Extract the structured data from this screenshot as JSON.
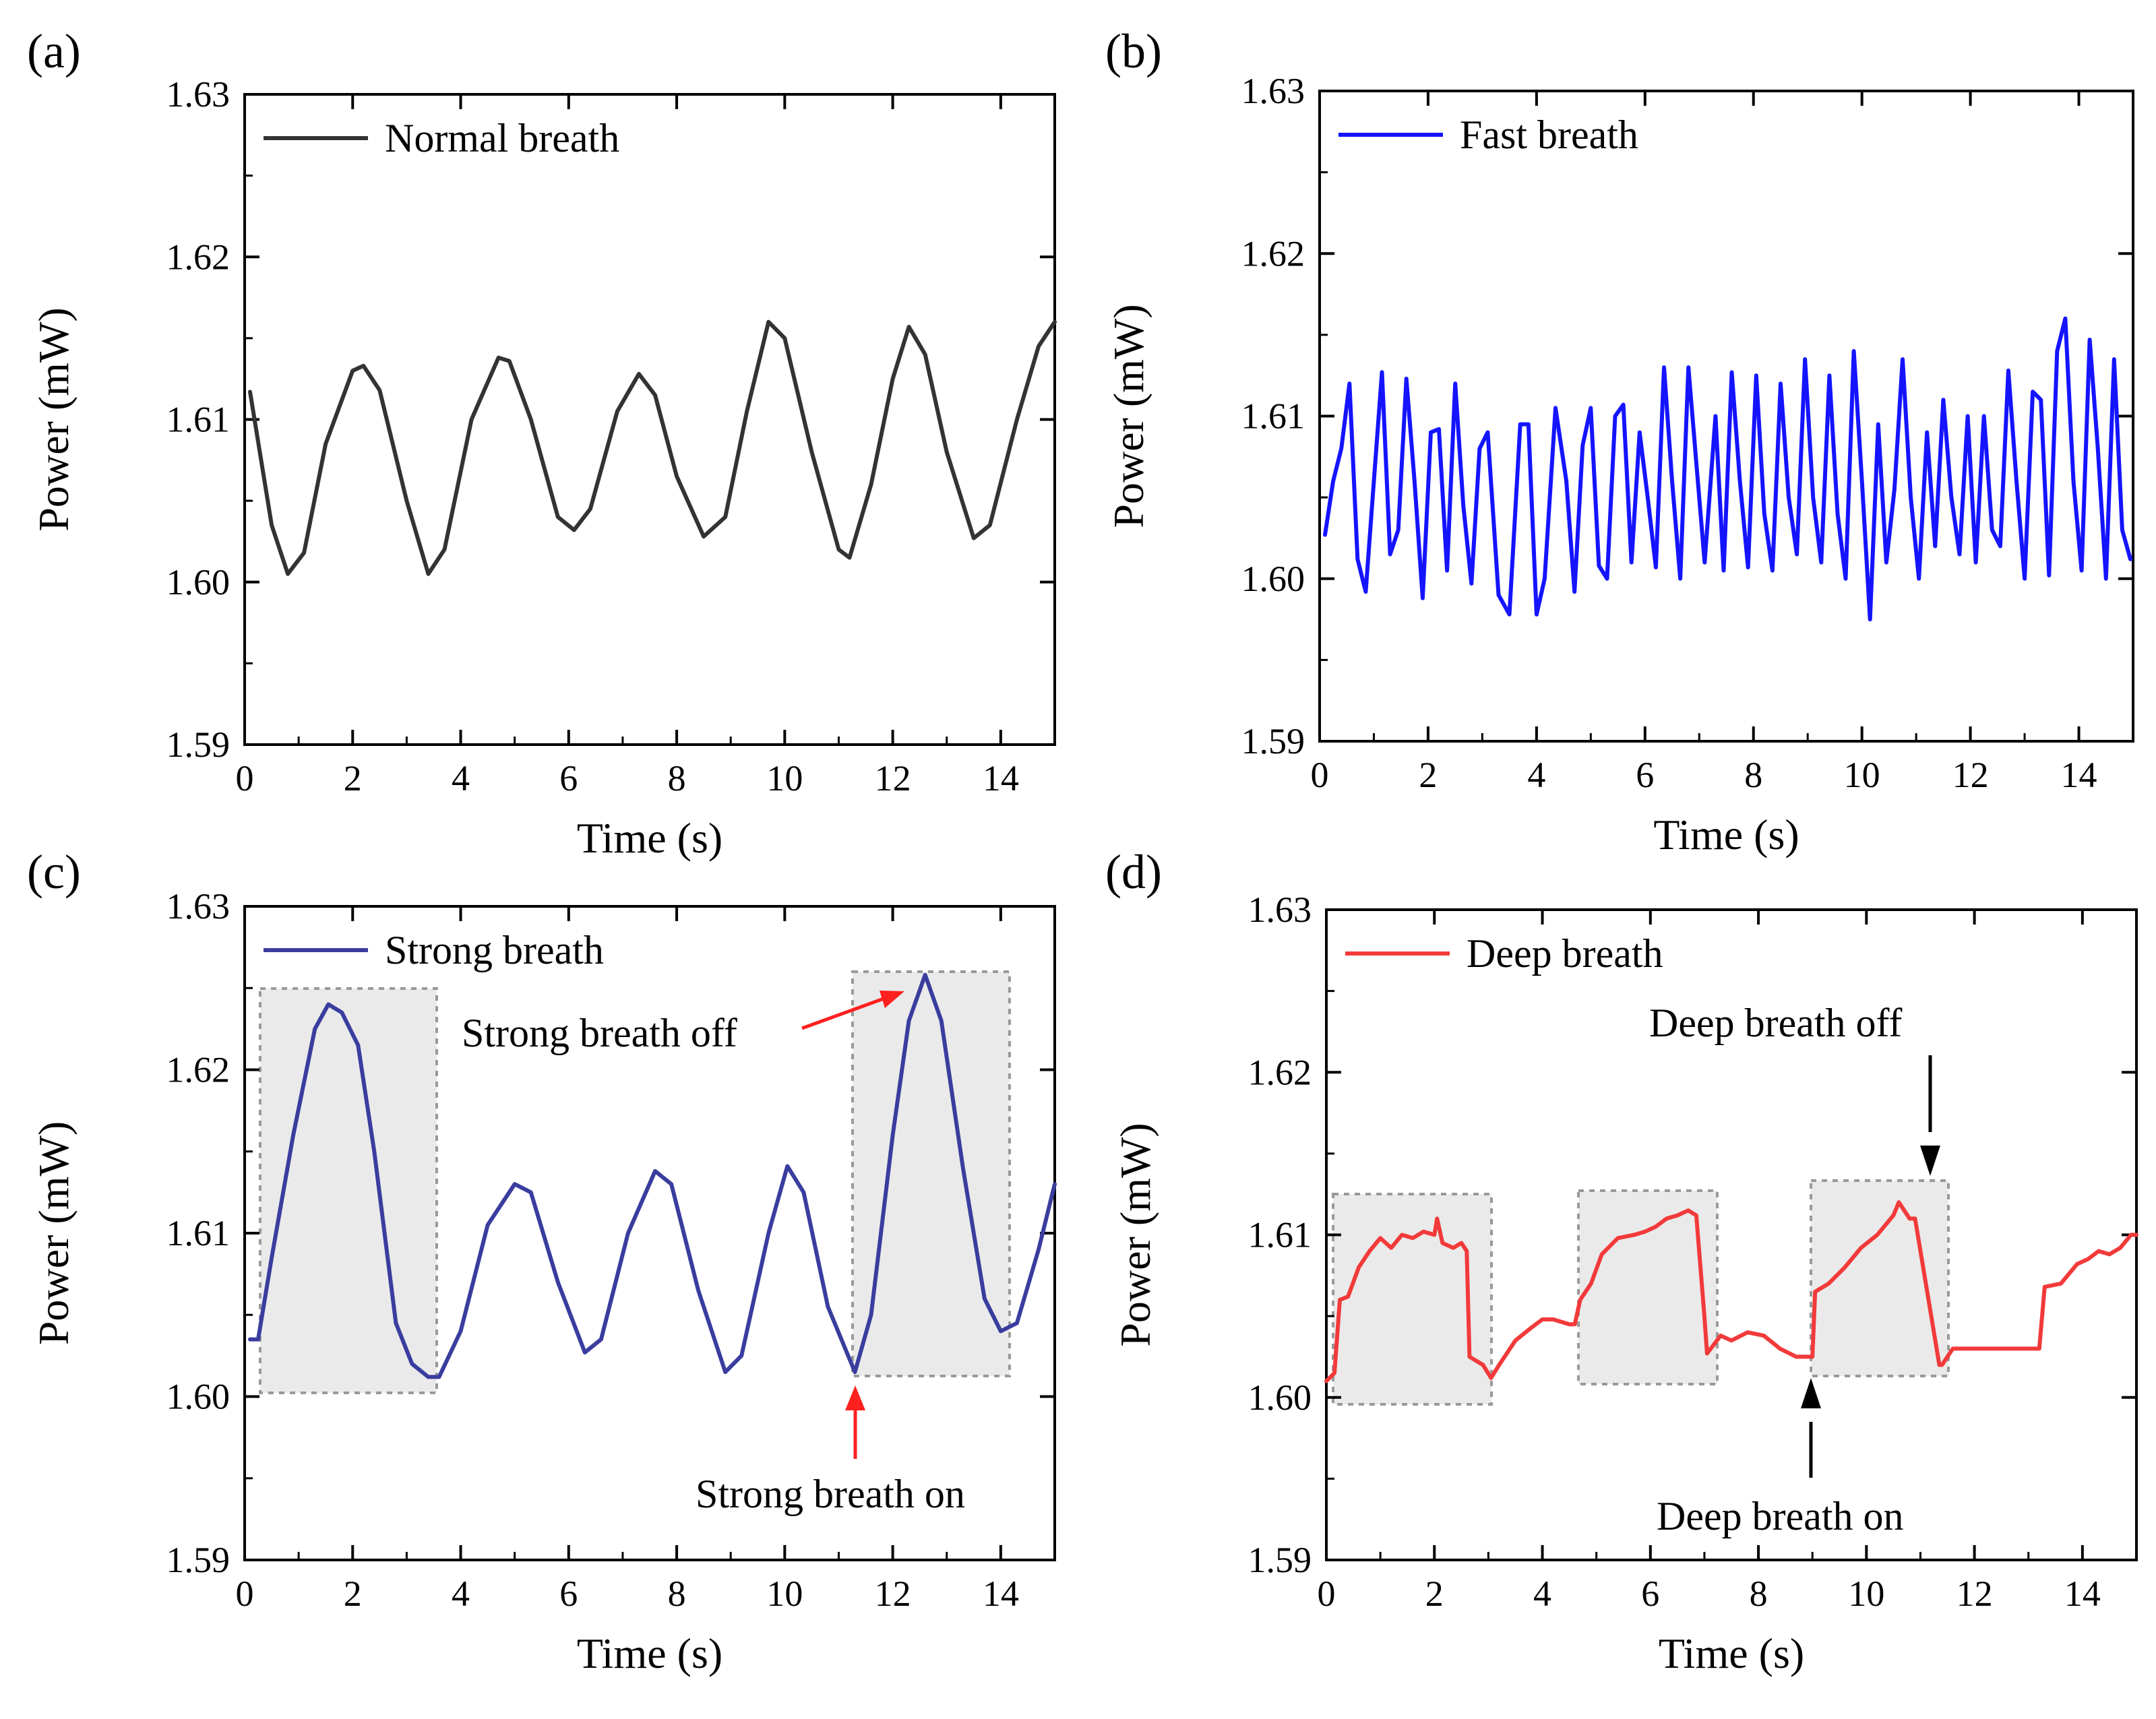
{
  "chart_data": [
    {
      "type": "line",
      "panel": "(a)",
      "xlabel": "Time (s)",
      "ylabel": "Power (mW)",
      "xlim": [
        0,
        15
      ],
      "ylim": [
        1.59,
        1.63
      ],
      "xticks": [
        "0",
        "2",
        "4",
        "6",
        "8",
        "10",
        "12",
        "14"
      ],
      "yticks": [
        "1.59",
        "1.60",
        "1.61",
        "1.62",
        "1.63"
      ],
      "series": [
        {
          "name": "Normal breath",
          "color": "#333333",
          "x": [
            0.1,
            0.5,
            0.8,
            1.1,
            1.5,
            2.0,
            2.2,
            2.5,
            3.0,
            3.4,
            3.7,
            4.2,
            4.7,
            4.9,
            5.3,
            5.8,
            6.1,
            6.4,
            6.9,
            7.3,
            7.6,
            8.0,
            8.5,
            8.9,
            9.3,
            9.7,
            10.0,
            10.5,
            11.0,
            11.2,
            11.6,
            12.0,
            12.3,
            12.6,
            13.0,
            13.5,
            13.8,
            14.3,
            14.7,
            15.0
          ],
          "y": [
            1.6117,
            1.6035,
            1.6005,
            1.6018,
            1.6085,
            1.613,
            1.6133,
            1.6118,
            1.605,
            1.6005,
            1.602,
            1.61,
            1.6138,
            1.6136,
            1.61,
            1.604,
            1.6032,
            1.6045,
            1.6105,
            1.6128,
            1.6115,
            1.6065,
            1.6028,
            1.604,
            1.6105,
            1.616,
            1.615,
            1.608,
            1.602,
            1.6015,
            1.606,
            1.6125,
            1.6157,
            1.614,
            1.608,
            1.6027,
            1.6035,
            1.61,
            1.6145,
            1.616
          ]
        }
      ]
    },
    {
      "type": "line",
      "panel": "(b)",
      "xlabel": "Time (s)",
      "ylabel": "Power (mW)",
      "xlim": [
        0,
        15
      ],
      "ylim": [
        1.59,
        1.63
      ],
      "xticks": [
        "0",
        "2",
        "4",
        "6",
        "8",
        "10",
        "12",
        "14"
      ],
      "yticks": [
        "1.59",
        "1.60",
        "1.61",
        "1.62",
        "1.63"
      ],
      "series": [
        {
          "name": "Fast breath",
          "color": "#1414ff",
          "x": [
            0.1,
            0.25,
            0.4,
            0.55,
            0.7,
            0.85,
            1.0,
            1.15,
            1.3,
            1.45,
            1.6,
            1.75,
            1.9,
            2.05,
            2.2,
            2.35,
            2.5,
            2.65,
            2.8,
            2.95,
            3.1,
            3.3,
            3.5,
            3.7,
            3.85,
            4.0,
            4.15,
            4.35,
            4.55,
            4.7,
            4.85,
            5.0,
            5.15,
            5.3,
            5.45,
            5.6,
            5.75,
            5.9,
            6.05,
            6.2,
            6.35,
            6.5,
            6.65,
            6.8,
            6.95,
            7.1,
            7.3,
            7.45,
            7.6,
            7.75,
            7.9,
            8.05,
            8.2,
            8.35,
            8.5,
            8.65,
            8.8,
            8.95,
            9.1,
            9.25,
            9.4,
            9.55,
            9.7,
            9.85,
            10.0,
            10.15,
            10.3,
            10.45,
            10.6,
            10.75,
            10.9,
            11.05,
            11.2,
            11.35,
            11.5,
            11.65,
            11.8,
            11.95,
            12.1,
            12.25,
            12.4,
            12.55,
            12.7,
            12.85,
            13.0,
            13.15,
            13.3,
            13.45,
            13.6,
            13.75,
            13.9,
            14.05,
            14.2,
            14.35,
            14.5,
            14.65,
            14.8,
            14.95
          ],
          "y": [
            1.6027,
            1.606,
            1.608,
            1.612,
            1.6012,
            1.5992,
            1.606,
            1.6127,
            1.6015,
            1.603,
            1.6123,
            1.606,
            1.5988,
            1.609,
            1.6092,
            1.6005,
            1.612,
            1.6045,
            1.5997,
            1.608,
            1.609,
            1.599,
            1.5978,
            1.6095,
            1.6095,
            1.5978,
            1.6,
            1.6105,
            1.606,
            1.5992,
            1.6082,
            1.6105,
            1.6008,
            1.6,
            1.61,
            1.6107,
            1.601,
            1.609,
            1.605,
            1.6007,
            1.613,
            1.606,
            1.6,
            1.613,
            1.607,
            1.601,
            1.61,
            1.6005,
            1.6127,
            1.606,
            1.6007,
            1.6125,
            1.604,
            1.6005,
            1.612,
            1.605,
            1.6015,
            1.6135,
            1.605,
            1.601,
            1.6125,
            1.604,
            1.6,
            1.614,
            1.606,
            1.5975,
            1.6095,
            1.601,
            1.6055,
            1.6135,
            1.605,
            1.6,
            1.609,
            1.602,
            1.611,
            1.605,
            1.6015,
            1.61,
            1.601,
            1.61,
            1.603,
            1.602,
            1.6128,
            1.606,
            1.6,
            1.6115,
            1.611,
            1.6002,
            1.614,
            1.616,
            1.606,
            1.6005,
            1.6147,
            1.608,
            1.6,
            1.6135,
            1.603,
            1.6012
          ]
        }
      ]
    },
    {
      "type": "line",
      "panel": "(c)",
      "xlabel": "Time (s)",
      "ylabel": "Power (mW)",
      "xlim": [
        0,
        15
      ],
      "ylim": [
        1.59,
        1.63
      ],
      "xticks": [
        "0",
        "2",
        "4",
        "6",
        "8",
        "10",
        "12",
        "14"
      ],
      "yticks": [
        "1.59",
        "1.60",
        "1.61",
        "1.62",
        "1.63"
      ],
      "series": [
        {
          "name": "Strong breath",
          "color": "#3a3d9e",
          "x": [
            0.1,
            0.25,
            0.5,
            0.9,
            1.3,
            1.55,
            1.8,
            2.1,
            2.4,
            2.8,
            3.1,
            3.4,
            3.6,
            4.0,
            4.5,
            5.0,
            5.3,
            5.8,
            6.3,
            6.6,
            7.1,
            7.6,
            7.9,
            8.4,
            8.9,
            9.2,
            9.7,
            10.05,
            10.35,
            10.8,
            11.3,
            11.6,
            12.0,
            12.3,
            12.6,
            12.9,
            13.3,
            13.7,
            14.0,
            14.3,
            14.7,
            15.0
          ],
          "y": [
            1.6035,
            1.6035,
            1.6085,
            1.616,
            1.6225,
            1.624,
            1.6235,
            1.6215,
            1.615,
            1.6045,
            1.602,
            1.6012,
            1.6012,
            1.604,
            1.6105,
            1.613,
            1.6125,
            1.607,
            1.6027,
            1.6035,
            1.61,
            1.6138,
            1.613,
            1.6065,
            1.6015,
            1.6025,
            1.61,
            1.6141,
            1.6125,
            1.6055,
            1.6015,
            1.605,
            1.616,
            1.623,
            1.6258,
            1.623,
            1.614,
            1.606,
            1.604,
            1.6045,
            1.609,
            1.613
          ]
        }
      ],
      "annotations": [
        "Strong breath off",
        "Strong breath on"
      ]
    },
    {
      "type": "line",
      "panel": "(d)",
      "xlabel": "Time (s)",
      "ylabel": "Power (mW)",
      "xlim": [
        0,
        15
      ],
      "ylim": [
        1.59,
        1.63
      ],
      "xticks": [
        "0",
        "2",
        "4",
        "6",
        "8",
        "10",
        "12",
        "14"
      ],
      "yticks": [
        "1.59",
        "1.60",
        "1.61",
        "1.62",
        "1.63"
      ],
      "series": [
        {
          "name": "Deep breath",
          "color": "#f23a3a",
          "x": [
            0.0,
            0.15,
            0.25,
            0.4,
            0.6,
            0.8,
            1.0,
            1.2,
            1.4,
            1.6,
            1.8,
            2.0,
            2.05,
            2.15,
            2.35,
            2.5,
            2.6,
            2.65,
            2.9,
            3.05,
            3.2,
            3.5,
            3.8,
            4.0,
            4.2,
            4.5,
            4.6,
            4.7,
            4.9,
            5.1,
            5.4,
            5.7,
            5.9,
            6.1,
            6.3,
            6.5,
            6.7,
            6.85,
            7.0,
            7.05,
            7.3,
            7.5,
            7.8,
            8.1,
            8.4,
            8.7,
            9.0,
            9.05,
            9.3,
            9.6,
            9.9,
            10.2,
            10.5,
            10.6,
            10.8,
            10.9,
            11.2,
            11.35,
            11.4,
            11.6,
            12.0,
            12.4,
            12.8,
            13.2,
            13.3,
            13.6,
            13.9,
            14.1,
            14.3,
            14.5,
            14.7,
            14.9,
            15.0
          ],
          "y": [
            1.601,
            1.6015,
            1.606,
            1.6062,
            1.608,
            1.609,
            1.6098,
            1.6092,
            1.61,
            1.6098,
            1.6102,
            1.61,
            1.611,
            1.6095,
            1.6092,
            1.6095,
            1.609,
            1.6025,
            1.602,
            1.6012,
            1.602,
            1.6035,
            1.6043,
            1.6048,
            1.6048,
            1.6045,
            1.6045,
            1.606,
            1.607,
            1.6088,
            1.6098,
            1.61,
            1.6102,
            1.6105,
            1.611,
            1.6112,
            1.6115,
            1.6112,
            1.605,
            1.6027,
            1.6038,
            1.6035,
            1.604,
            1.6038,
            1.603,
            1.6025,
            1.6025,
            1.6065,
            1.607,
            1.608,
            1.6092,
            1.61,
            1.6112,
            1.612,
            1.611,
            1.611,
            1.605,
            1.602,
            1.602,
            1.603,
            1.603,
            1.603,
            1.603,
            1.603,
            1.6068,
            1.607,
            1.6082,
            1.6085,
            1.609,
            1.6088,
            1.6092,
            1.61,
            1.61
          ]
        }
      ],
      "annotations": [
        "Deep breath off",
        "Deep breath on"
      ]
    }
  ]
}
